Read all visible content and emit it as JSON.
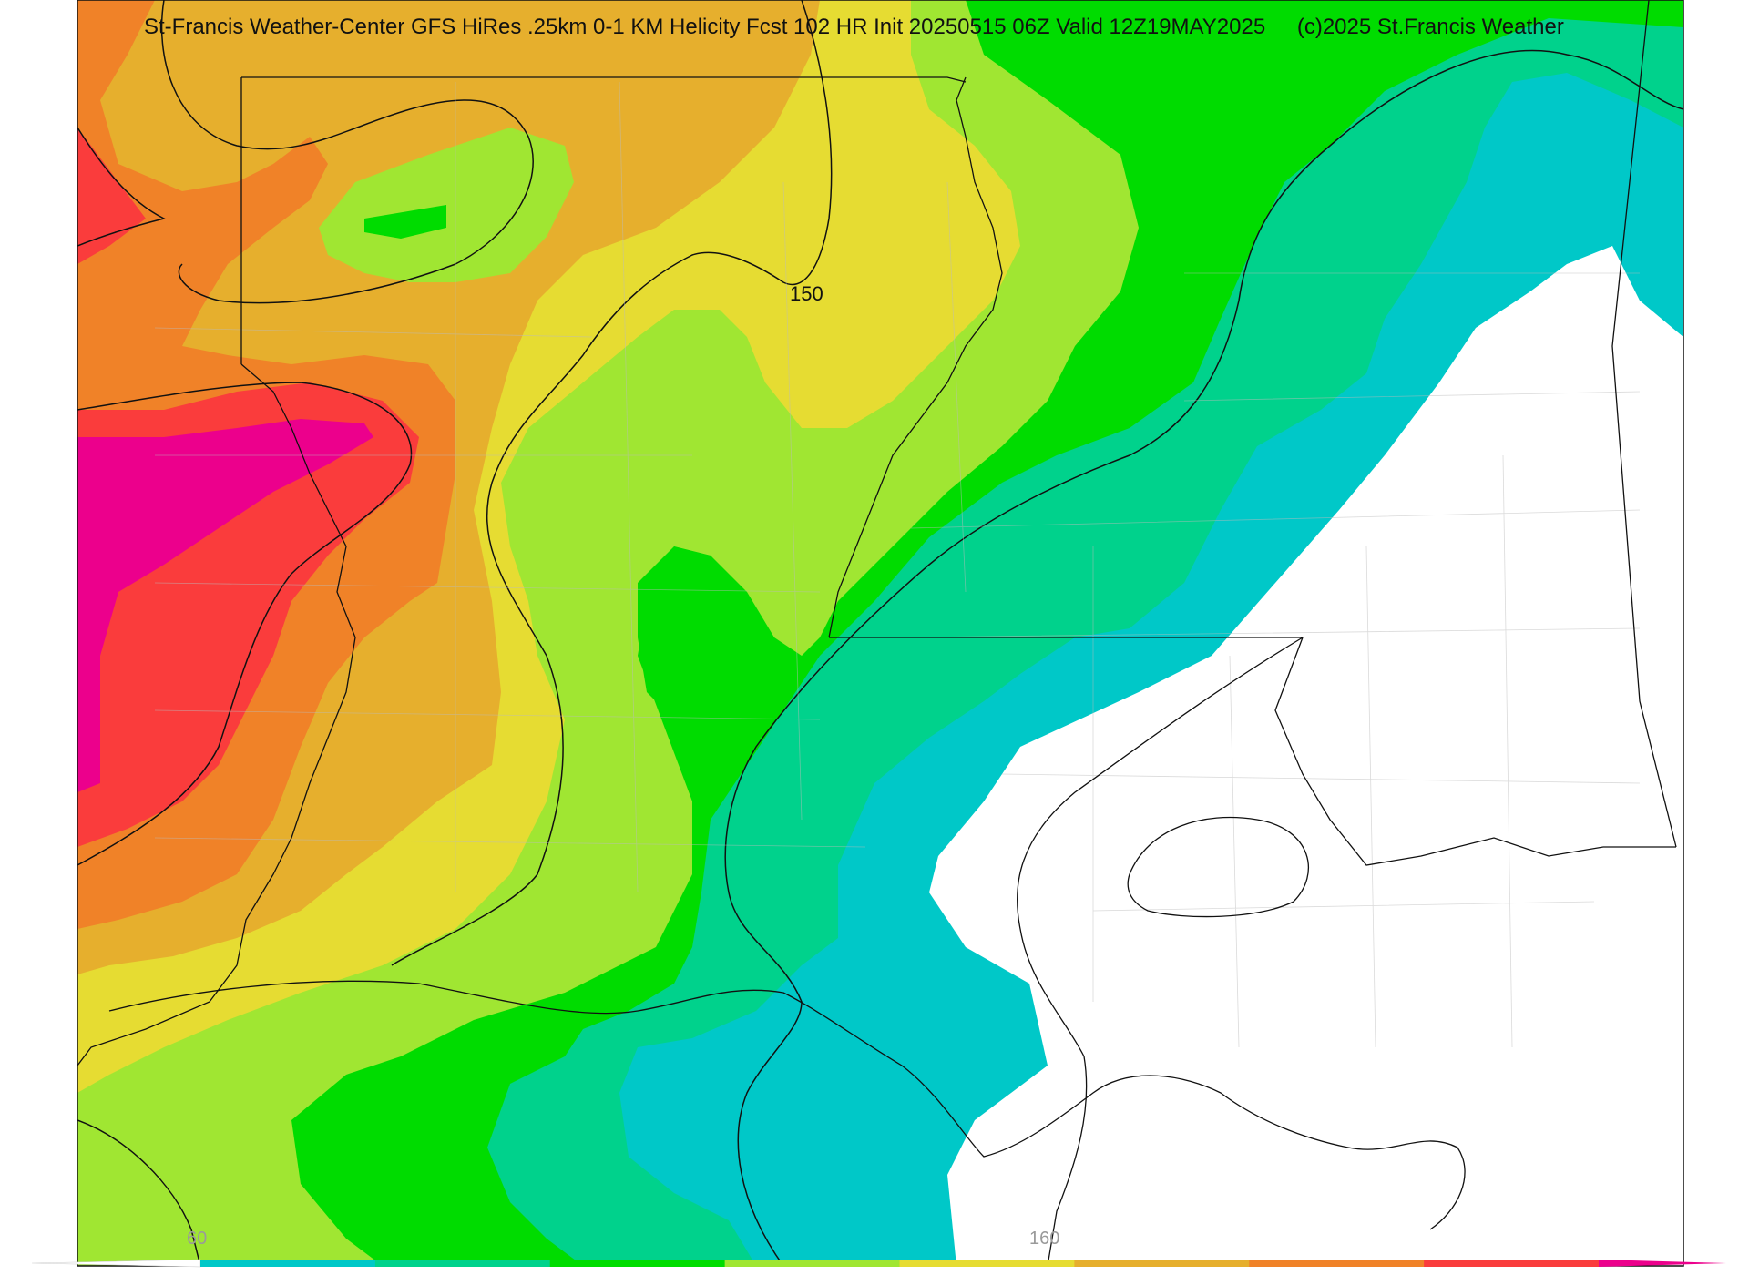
{
  "header": {
    "title": "St-Francis Weather-Center GFS HiRes .25km 0-1 KM Helicity Fcst 102 HR Init 20250515 06Z  Valid 12Z19MAY2025",
    "copyright": "(c)2025 St.Francis Weather"
  },
  "map": {
    "contour_label": "150",
    "colors": {
      "magenta": "#ec008c",
      "red": "#fa3c3c",
      "orange": "#f08228",
      "gold": "#e6af2d",
      "yellow": "#e6dc32",
      "yellowgreen": "#a0e632",
      "green": "#00dc00",
      "seagreen": "#00d28c",
      "cyan": "#00c8c8",
      "background": "#ffffff"
    }
  },
  "colorbar": {
    "tick_labels": [
      "60",
      "160"
    ],
    "colors": [
      "#ffffff",
      "#00c8c8",
      "#00d28c",
      "#00dc00",
      "#a0e632",
      "#e6dc32",
      "#e6af2d",
      "#f08228",
      "#fa3c3c",
      "#ec008c"
    ]
  }
}
